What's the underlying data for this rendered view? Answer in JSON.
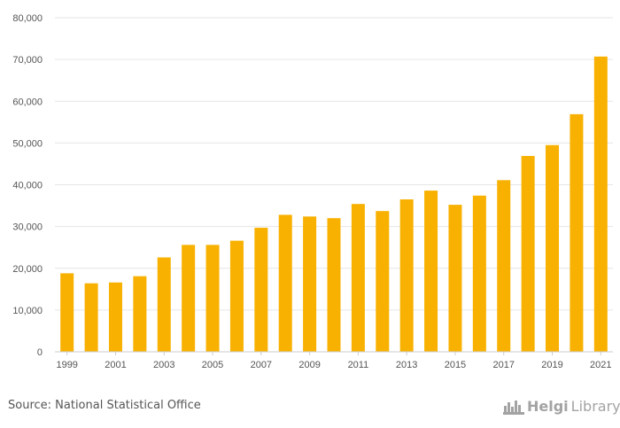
{
  "chart_data": {
    "type": "bar",
    "categories": [
      "1999",
      "2000",
      "2001",
      "2002",
      "2003",
      "2004",
      "2005",
      "2006",
      "2007",
      "2008",
      "2009",
      "2010",
      "2011",
      "2012",
      "2013",
      "2014",
      "2015",
      "2016",
      "2017",
      "2018",
      "2019",
      "2020",
      "2021"
    ],
    "values": [
      18800,
      16400,
      16600,
      18100,
      22600,
      25600,
      25600,
      26600,
      29700,
      32800,
      32400,
      32000,
      35400,
      33700,
      36500,
      38600,
      35200,
      37400,
      41100,
      46900,
      49500,
      56900,
      70700
    ],
    "x_tick_labels": [
      "1999",
      "2001",
      "2003",
      "2005",
      "2007",
      "2009",
      "2011",
      "2013",
      "2015",
      "2017",
      "2019",
      "2021"
    ],
    "y_tick_labels": [
      "0",
      "10,000",
      "20,000",
      "30,000",
      "40,000",
      "50,000",
      "60,000",
      "70,000",
      "80,000"
    ],
    "y_ticks": [
      0,
      10000,
      20000,
      30000,
      40000,
      50000,
      60000,
      70000,
      80000
    ],
    "ylim": [
      0,
      80000
    ],
    "title": "",
    "xlabel": "",
    "ylabel": "",
    "grid": true,
    "bar_color": "#F8B100"
  },
  "footer": {
    "source": "Source: National Statistical Office",
    "logo_bold": "Helgi",
    "logo_light": "Library."
  },
  "colors": {
    "bar": "#F8B100",
    "grid": "#e6e6e6",
    "axis_text": "#555555"
  }
}
